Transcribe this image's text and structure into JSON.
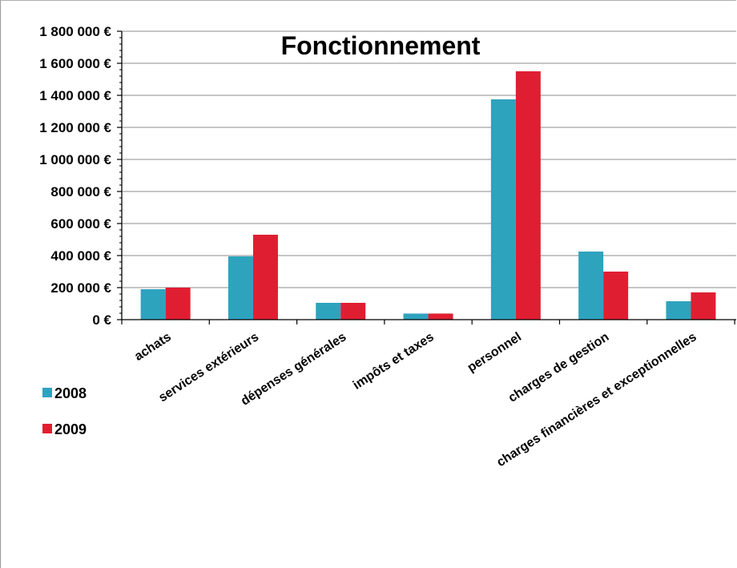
{
  "chart_data": {
    "type": "bar",
    "title": "Fonctionnement",
    "xlabel": "",
    "ylabel": "",
    "categories": [
      "achats",
      "services extérieurs",
      "dépenses générales",
      "impôts et taxes",
      "personnel",
      "charges de gestion",
      "charges financières et  exceptionnelles"
    ],
    "series": [
      {
        "name": "2008",
        "color": "#2ea3be",
        "values": [
          190000,
          395000,
          105000,
          38000,
          1375000,
          425000,
          115000
        ]
      },
      {
        "name": "2009",
        "color": "#e01e32",
        "values": [
          200000,
          530000,
          105000,
          38000,
          1550000,
          300000,
          170000
        ]
      }
    ],
    "ylim": [
      0,
      1800000
    ],
    "yticks": [
      "0 €",
      "200 000 €",
      "400 000 €",
      "600 000 €",
      "800 000 €",
      "1 000 000 €",
      "1 200 000 €",
      "1 400 000 €",
      "1 600 000 €",
      "1 800 000 €"
    ],
    "ytick_values": [
      0,
      200000,
      400000,
      600000,
      800000,
      1000000,
      1200000,
      1400000,
      1600000,
      1800000
    ],
    "grid": true,
    "legend": "left"
  }
}
